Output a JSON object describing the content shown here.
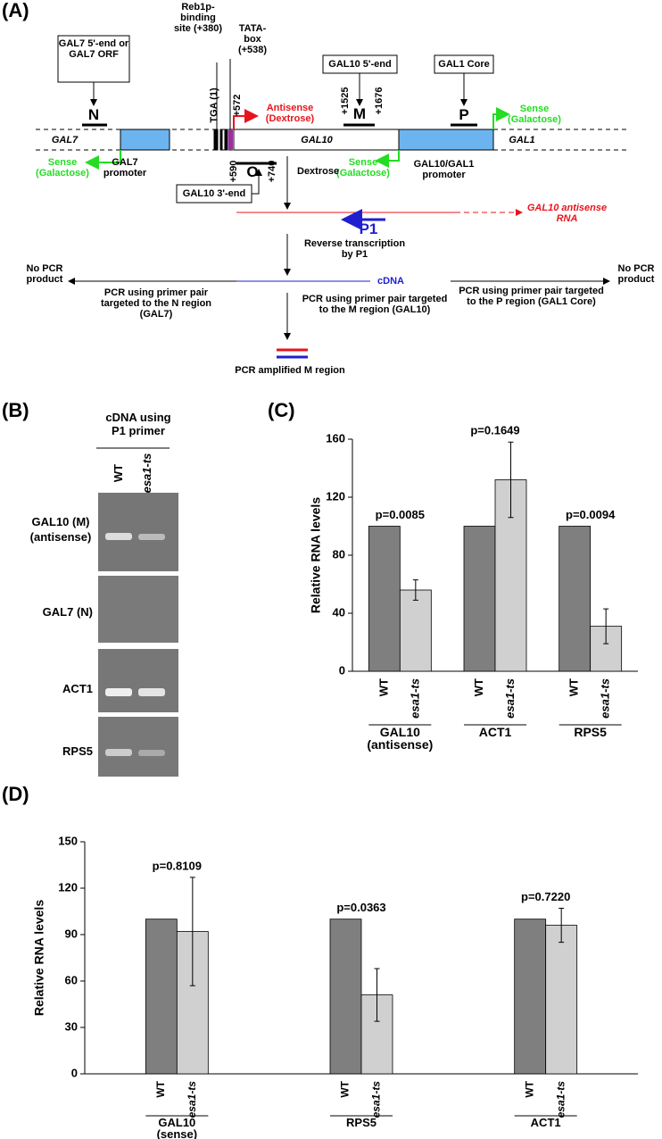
{
  "panels": [
    "(A)",
    "(B)",
    "(C)",
    "(D)"
  ],
  "diagram": {
    "labels": [
      "GAL7 5'-end or GAL7 ORF",
      "N",
      "Reb1p-binding site (+380)",
      "TATA-box (+538)",
      "TGA (1)",
      "+572",
      "Antisense (Dextrose)",
      "GAL10 5'-end",
      "+1525",
      "M",
      "+1676",
      "GAL1 Core",
      "P",
      "Sense (Galactose)",
      "GAL7",
      "GAL10",
      "GAL1",
      "Sense (Galactose)",
      "GAL7 promoter",
      "+590",
      "O",
      "+740",
      "GAL10 3'-end",
      "Sense (Galactose)",
      "GAL10/GAL1 promoter",
      "Dextrose",
      "GAL10 antisense RNA",
      "P1",
      "Reverse transcription by P1",
      "cDNA",
      "No PCR product",
      "PCR using primer pair targeted to the N region (GAL7)",
      "PCR using primer pair targeted to the M region (GAL10)",
      "PCR using primer pair targeted to the P region (GAL1 Core)",
      "No PCR product",
      "PCR amplified M region"
    ]
  },
  "gel": {
    "header": "cDNA using P1 primer",
    "lanes": [
      "WT",
      "esa1-ts"
    ],
    "rows": [
      "GAL10 (M) (antisense)",
      "GAL7 (N)",
      "ACT1",
      "RPS5"
    ]
  },
  "chart_data": [
    {
      "type": "bar",
      "y_label": "Relative RNA levels",
      "categories": [
        "GAL10 (antisense)",
        "ACT1",
        "RPS5"
      ],
      "series": [
        {
          "name": "WT",
          "color": "#7f7f7f",
          "values": [
            100,
            100,
            100
          ]
        },
        {
          "name": "esa1-ts",
          "color": "#d0d0d0",
          "values": [
            56,
            132,
            31
          ],
          "errors": [
            7,
            26,
            12
          ]
        }
      ],
      "annotations": [
        "p=0.0085",
        "p=0.1649",
        "p=0.0094"
      ],
      "ylim": [
        0,
        160
      ],
      "yticks": [
        0,
        40,
        80,
        120,
        160
      ]
    },
    {
      "type": "bar",
      "y_label": "Relative RNA levels",
      "categories": [
        "GAL10 (sense)",
        "RPS5",
        "ACT1"
      ],
      "series": [
        {
          "name": "WT",
          "color": "#7f7f7f",
          "values": [
            100,
            100,
            100
          ]
        },
        {
          "name": "esa1-ts",
          "color": "#d0d0d0",
          "values": [
            92,
            51,
            96
          ],
          "errors": [
            35,
            17,
            11
          ]
        }
      ],
      "annotations": [
        "p=0.8109",
        "p=0.0363",
        "p=0.7220"
      ],
      "ylim": [
        0,
        150
      ],
      "yticks": [
        0,
        30,
        60,
        90,
        120,
        150
      ]
    }
  ]
}
